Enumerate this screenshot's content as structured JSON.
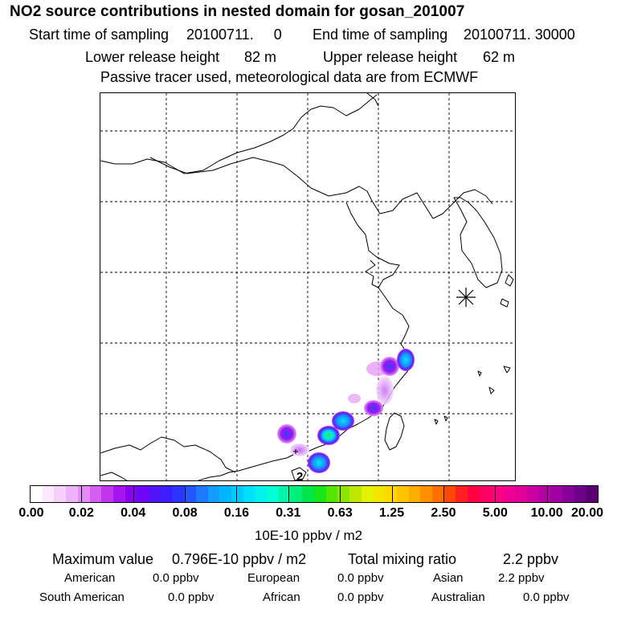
{
  "header": {
    "title": "NO2 source contributions in nested domain for gosan_201007",
    "start_label": "Start time of sampling",
    "start_value": "20100711.     0",
    "end_label": "End time of sampling",
    "end_value": "20100711. 30000",
    "lower_label": "Lower release height",
    "lower_value": "82 m",
    "upper_label": "Upper release height",
    "upper_value": "62 m",
    "note": "Passive tracer used, meteorological data are from ECMWF"
  },
  "map": {
    "marker_label": "2",
    "receptor_symbol": "receptor-star",
    "land_color": "#ffffff",
    "coast_color": "#000000",
    "grid_color": "#000000"
  },
  "colorbar": {
    "ticks": [
      "0.00",
      "0.02",
      "0.04",
      "0.08",
      "0.16",
      "0.31",
      "0.63",
      "1.25",
      "2.50",
      "5.00",
      "10.00",
      "20.00"
    ],
    "colors": [
      "#ffffff",
      "#fbe8fd",
      "#f5d0fb",
      "#eeb2f8",
      "#e38cf4",
      "#d35ef0",
      "#bf36ee",
      "#a613ec",
      "#8a00f0",
      "#6e08f4",
      "#5213f8",
      "#3c1ffc",
      "#2d33ff",
      "#2456ff",
      "#1b7aff",
      "#129dff",
      "#00b5ff",
      "#00caff",
      "#00e0ff",
      "#00f4ec",
      "#00ffd2",
      "#00f5a8",
      "#00ee7a",
      "#00e64a",
      "#19e61a",
      "#55e600",
      "#8ae600",
      "#bde600",
      "#e3f200",
      "#f2e600",
      "#ffd800",
      "#ffc400",
      "#ffac00",
      "#ff9000",
      "#ff7000",
      "#ff4800",
      "#ff2020",
      "#ff0040",
      "#ff0060",
      "#ff0080",
      "#f00090",
      "#e0009a",
      "#cc00a0",
      "#b600a4",
      "#a000a0",
      "#880098",
      "#700088",
      "#580070"
    ],
    "unit": "10E-10 ppbv / m2"
  },
  "summary": {
    "max_label": "Maximum value",
    "max_value": "0.796E-10 ppbv / m2",
    "total_label": "Total mixing ratio",
    "total_value": "2.2 ppbv"
  },
  "regions": [
    {
      "name": "American",
      "value": "0.0 ppbv"
    },
    {
      "name": "European",
      "value": "0.0 ppbv"
    },
    {
      "name": "Asian",
      "value": "2.2 ppbv"
    },
    {
      "name": "South American",
      "value": "0.0 ppbv"
    },
    {
      "name": "African",
      "value": "0.0 ppbv"
    },
    {
      "name": "Australian",
      "value": "0.0 ppbv"
    }
  ]
}
